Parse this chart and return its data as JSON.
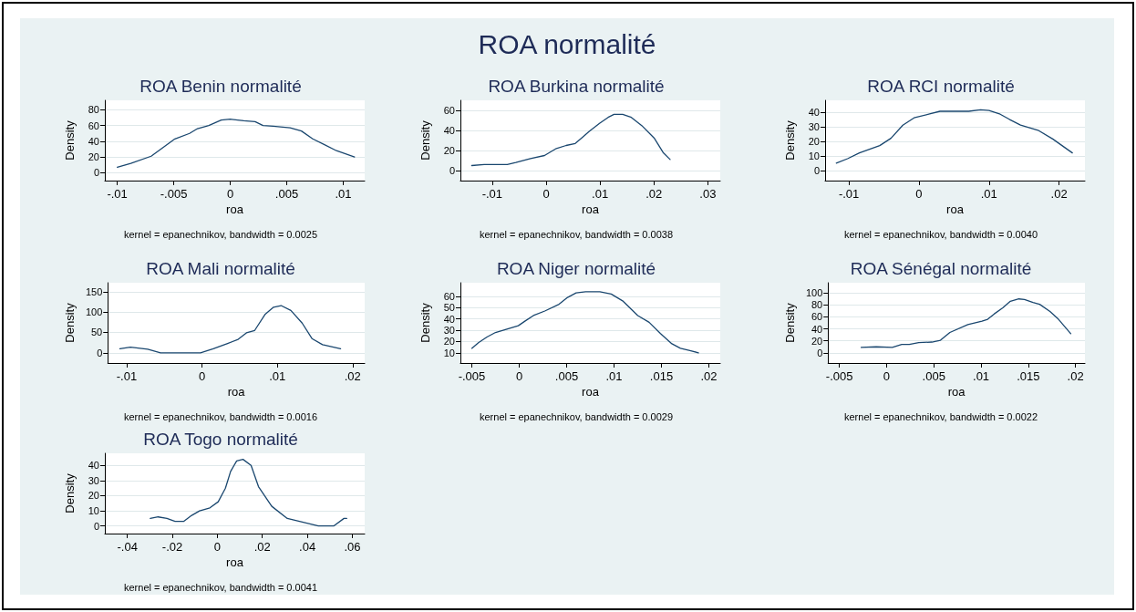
{
  "chart_data": [
    {
      "type": "other",
      "title": "ROA normalité"
    },
    {
      "type": "line",
      "title": "ROA Benin normalité",
      "xlabel": "roa",
      "ylabel": "Density",
      "annotations": [
        "kernel = epanechnikov, bandwidth = 0.0025"
      ],
      "color": "#1a476f",
      "grid": "y",
      "xlim": [
        -0.0111,
        0.0119
      ],
      "ylim": [
        -10,
        92
      ],
      "xticks": [
        {
          "value": -0.01,
          "label": "-.01"
        },
        {
          "value": -0.005,
          "label": "-.005"
        },
        {
          "value": 0,
          "label": "0"
        },
        {
          "value": 0.005,
          "label": ".005"
        },
        {
          "value": 0.01,
          "label": ".01"
        }
      ],
      "yticks": [
        0,
        20,
        40,
        60,
        80
      ],
      "x": [
        -0.01,
        -0.0088,
        -0.007,
        -0.0049,
        -0.0036,
        -0.0029,
        -0.0019,
        -0.0008,
        0,
        0.0012,
        0.0022,
        0.0029,
        0.0038,
        0.0053,
        0.0063,
        0.0073,
        0.0083,
        0.0094,
        0.011
      ],
      "values": [
        7,
        12,
        21,
        43,
        50,
        56,
        60,
        67,
        68,
        66,
        65,
        60,
        59,
        57,
        53,
        43,
        36,
        28,
        20
      ]
    },
    {
      "type": "line",
      "title": "ROA Burkina normalité",
      "xlabel": "roa",
      "ylabel": "Density",
      "annotations": [
        "kernel = epanechnikov, bandwidth = 0.0038"
      ],
      "color": "#1a476f",
      "grid": "y",
      "xlim": [
        -0.0159,
        0.0323
      ],
      "ylim": [
        -10,
        70
      ],
      "xticks": [
        {
          "value": -0.01,
          "label": "-.01"
        },
        {
          "value": 0,
          "label": "0"
        },
        {
          "value": 0.01,
          "label": ".01"
        },
        {
          "value": 0.02,
          "label": ".02"
        },
        {
          "value": 0.03,
          "label": ".03"
        }
      ],
      "yticks": [
        0,
        20,
        40,
        60
      ],
      "x": [
        -0.0138,
        -0.0115,
        -0.0072,
        -0.0056,
        -0.0029,
        -0.0003,
        0.0019,
        0.0037,
        0.0054,
        0.0067,
        0.008,
        0.0099,
        0.0115,
        0.0126,
        0.0142,
        0.0158,
        0.0179,
        0.0201,
        0.0217,
        0.023
      ],
      "values": [
        5,
        6,
        6,
        8,
        12,
        15,
        22,
        25,
        27,
        33,
        39,
        47,
        53,
        56,
        56,
        53,
        44,
        32,
        18,
        11
      ]
    },
    {
      "type": "line",
      "title": "ROA RCI normalité",
      "xlabel": "roa",
      "ylabel": "Density",
      "annotations": [
        "kernel = epanechnikov, bandwidth = 0.0040"
      ],
      "color": "#1a476f",
      "grid": "y",
      "xlim": [
        -0.0134,
        0.0237
      ],
      "ylim": [
        -7,
        48
      ],
      "xticks": [
        {
          "value": -0.01,
          "label": "-.01"
        },
        {
          "value": 0,
          "label": "0"
        },
        {
          "value": 0.01,
          "label": ".01"
        },
        {
          "value": 0.02,
          "label": ".02"
        }
      ],
      "yticks": [
        0,
        10,
        20,
        30,
        40
      ],
      "x": [
        -0.0118,
        -0.0102,
        -0.0085,
        -0.0056,
        -0.004,
        -0.0023,
        -0.0007,
        0.0014,
        0.003,
        0.0047,
        0.0071,
        0.0088,
        0.01,
        0.0116,
        0.0129,
        0.0145,
        0.017,
        0.0191,
        0.0219
      ],
      "values": [
        5,
        8,
        12,
        17,
        22,
        31,
        36,
        38.5,
        40.5,
        40.5,
        40.5,
        41.5,
        41,
        38.5,
        35,
        31,
        27.5,
        21.5,
        12
      ]
    },
    {
      "type": "line",
      "title": "ROA Mali normalité",
      "xlabel": "roa",
      "ylabel": "Density",
      "annotations": [
        "kernel = epanechnikov, bandwidth = 0.0016"
      ],
      "color": "#1a476f",
      "grid": "y",
      "xlim": [
        -0.0125,
        0.0216
      ],
      "ylim": [
        -25,
        172
      ],
      "xticks": [
        {
          "value": -0.01,
          "label": "-.01"
        },
        {
          "value": 0,
          "label": "0"
        },
        {
          "value": 0.01,
          "label": ".01"
        },
        {
          "value": 0.02,
          "label": ".02"
        }
      ],
      "yticks": [
        0,
        50,
        100,
        150
      ],
      "x": [
        -0.0109,
        -0.0095,
        -0.0072,
        -0.0055,
        -0.0002,
        0.0015,
        0.0034,
        0.0048,
        0.0059,
        0.007,
        0.0084,
        0.0095,
        0.0105,
        0.0118,
        0.0133,
        0.0146,
        0.016,
        0.0184
      ],
      "values": [
        10,
        14,
        9,
        0,
        0,
        10,
        23,
        33,
        49,
        55,
        95,
        112,
        116,
        104,
        73,
        35,
        20,
        10
      ]
    },
    {
      "type": "line",
      "title": "ROA Niger normalité",
      "xlabel": "roa",
      "ylabel": "Density",
      "annotations": [
        "kernel = epanechnikov, bandwidth = 0.0029"
      ],
      "color": "#1a476f",
      "grid": "y",
      "xlim": [
        -0.0062,
        0.0212
      ],
      "ylim": [
        1,
        72
      ],
      "xticks": [
        {
          "value": -0.005,
          "label": "-.005"
        },
        {
          "value": 0,
          "label": "0"
        },
        {
          "value": 0.005,
          "label": ".005"
        },
        {
          "value": 0.01,
          "label": ".01"
        },
        {
          "value": 0.015,
          "label": ".015"
        },
        {
          "value": 0.02,
          "label": ".02"
        }
      ],
      "yticks": [
        10,
        20,
        30,
        40,
        50,
        60
      ],
      "x": [
        -0.005,
        -0.0043,
        -0.0034,
        -0.0025,
        -0.0013,
        -0.0001,
        0.0006,
        0.0015,
        0.0027,
        0.0042,
        0.0051,
        0.006,
        0.007,
        0.0085,
        0.0097,
        0.0109,
        0.0125,
        0.0137,
        0.0149,
        0.0161,
        0.017,
        0.018,
        0.0189
      ],
      "values": [
        14,
        19,
        24,
        28,
        31,
        34,
        38,
        43,
        47,
        53,
        59,
        63,
        64,
        64,
        62,
        56,
        43,
        37,
        27,
        18,
        14,
        12,
        10
      ]
    },
    {
      "type": "line",
      "title": "ROA Sénégal normalité",
      "xlabel": "roa",
      "ylabel": "Density",
      "annotations": [
        "kernel = epanechnikov, bandwidth = 0.0022"
      ],
      "color": "#1a476f",
      "grid": "y",
      "xlim": [
        -0.0062,
        0.021
      ],
      "ylim": [
        -17,
        117
      ],
      "xticks": [
        {
          "value": -0.005,
          "label": "-.005"
        },
        {
          "value": 0,
          "label": "0"
        },
        {
          "value": 0.005,
          "label": ".005"
        },
        {
          "value": 0.01,
          "label": ".01"
        },
        {
          "value": 0.015,
          "label": ".015"
        },
        {
          "value": 0.02,
          "label": ".02"
        }
      ],
      "yticks": [
        0,
        20,
        40,
        60,
        80,
        100
      ],
      "x": [
        -0.0027,
        -0.0011,
        0.0006,
        0.0016,
        0.0024,
        0.0034,
        0.0048,
        0.0057,
        0.0067,
        0.0086,
        0.0101,
        0.0107,
        0.0114,
        0.0123,
        0.0131,
        0.014,
        0.0146,
        0.0155,
        0.0162,
        0.0173,
        0.0182,
        0.0195
      ],
      "values": [
        9,
        10,
        9,
        14,
        14,
        17,
        18,
        21,
        34,
        47,
        53,
        56,
        65,
        75,
        86,
        90,
        89,
        84,
        81,
        69,
        56,
        32
      ]
    },
    {
      "type": "line",
      "title": "ROA Togo normalité",
      "xlabel": "roa",
      "ylabel": "Density",
      "annotations": [
        "kernel = epanechnikov, bandwidth = 0.0041"
      ],
      "color": "#1a476f",
      "grid": "y",
      "xlim": [
        -0.05,
        0.0655
      ],
      "ylim": [
        -5,
        48
      ],
      "xticks": [
        {
          "value": -0.04,
          "label": "-.04"
        },
        {
          "value": -0.02,
          "label": "-.02"
        },
        {
          "value": 0,
          "label": "0"
        },
        {
          "value": 0.02,
          "label": ".02"
        },
        {
          "value": 0.04,
          "label": ".04"
        },
        {
          "value": 0.06,
          "label": ".06"
        }
      ],
      "yticks": [
        0,
        10,
        20,
        30,
        40
      ],
      "x": [
        -0.0298,
        -0.0263,
        -0.0224,
        -0.0188,
        -0.015,
        -0.0114,
        -0.0079,
        -0.0033,
        0.0004,
        0.0036,
        0.0059,
        0.0086,
        0.0114,
        0.015,
        0.0183,
        0.0242,
        0.0311,
        0.0449,
        0.0517,
        0.0563,
        0.0575
      ],
      "values": [
        5,
        6,
        5,
        3,
        3,
        7,
        10,
        12,
        16,
        25,
        36,
        43,
        44,
        40,
        26,
        13,
        5,
        0,
        0,
        5,
        5
      ]
    }
  ]
}
